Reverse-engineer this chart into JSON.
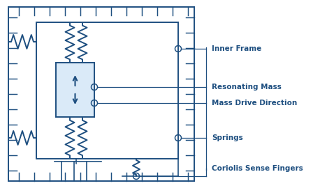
{
  "bg_color": "#ffffff",
  "c": "#1e4f80",
  "mass_fill": "#daeaf8",
  "lw": 1.4,
  "label_color": "#1e4f80",
  "label_fontsize": 7.5,
  "fig_w": 4.68,
  "fig_h": 2.7,
  "labels": [
    "Inner Frame",
    "Resonating Mass",
    "Mass Drive Direction",
    "Springs",
    "Coriolis Sense Fingers"
  ]
}
